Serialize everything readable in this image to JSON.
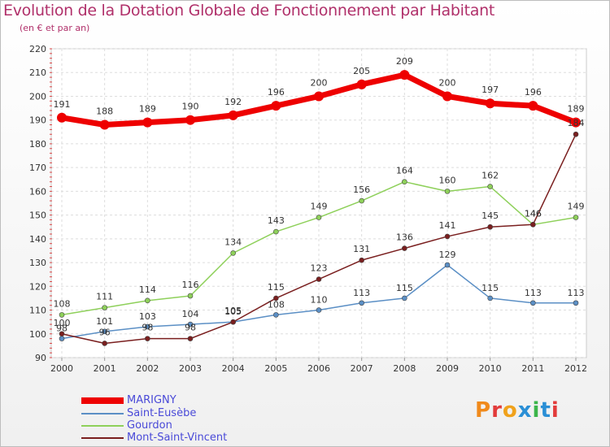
{
  "header": {
    "title": "Evolution de la Dotation Globale de Fonctionnement par Habitant",
    "subtitle": "(en € et par an)"
  },
  "brand": {
    "text": "Proxiti",
    "letter_colors": [
      "#f08a1c",
      "#e23b3b",
      "#f0a21c",
      "#2a8fd6",
      "#3bb54a",
      "#2a8fd6",
      "#e23b3b"
    ]
  },
  "chart_data": {
    "type": "line",
    "title": "Evolution de la Dotation Globale de Fonctionnement par Habitant",
    "subtitle": "(en € et par an)",
    "xlabel": "",
    "ylabel": "",
    "x": [
      "2000",
      "2001",
      "2002",
      "2003",
      "2004",
      "2005",
      "2006",
      "2007",
      "2008",
      "2009",
      "2010",
      "2011",
      "2012"
    ],
    "ylim": [
      90,
      220
    ],
    "yticks": [
      90,
      100,
      110,
      120,
      130,
      140,
      150,
      160,
      170,
      180,
      190,
      200,
      210,
      220
    ],
    "grid": true,
    "legend_position": "bottom-left",
    "series": [
      {
        "name": "MARIGNY",
        "color": "#ee0000",
        "values": [
          191,
          188,
          189,
          190,
          192,
          196,
          200,
          205,
          209,
          200,
          197,
          196,
          189
        ]
      },
      {
        "name": "Saint-Eusèbe",
        "color": "#5b8fc5",
        "values": [
          98,
          101,
          103,
          104,
          105,
          108,
          110,
          113,
          115,
          129,
          115,
          113,
          113
        ]
      },
      {
        "name": "Gourdon",
        "color": "#8ed05a",
        "values": [
          108,
          111,
          114,
          116,
          134,
          143,
          149,
          156,
          164,
          160,
          162,
          146,
          149
        ]
      },
      {
        "name": "Mont-Saint-Vincent",
        "color": "#7a1f1f",
        "values": [
          100,
          96,
          98,
          98,
          105,
          115,
          123,
          131,
          136,
          141,
          145,
          146,
          184
        ]
      }
    ]
  }
}
